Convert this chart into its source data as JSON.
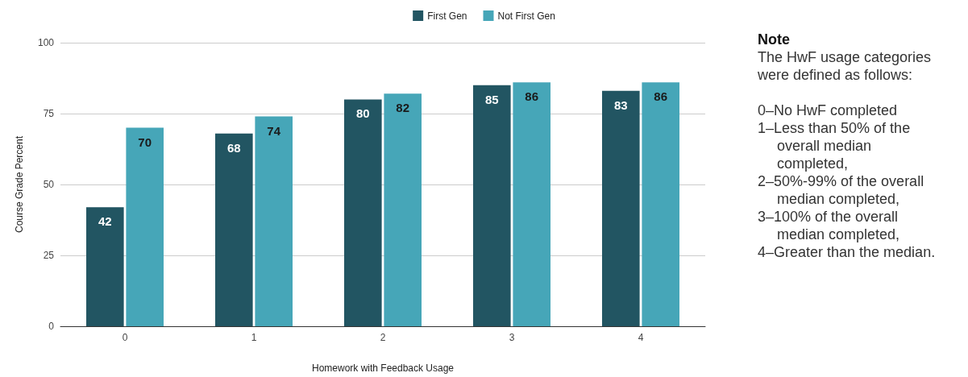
{
  "chart_data": {
    "type": "bar",
    "xlabel": "Homework with Feedback Usage",
    "ylabel": "Course Grade Percent",
    "categories": [
      "0",
      "1",
      "2",
      "3",
      "4"
    ],
    "series": [
      {
        "name": "First Gen",
        "color": "#225562",
        "values": [
          42,
          68,
          80,
          85,
          83
        ]
      },
      {
        "name": "Not First Gen",
        "color": "#46a6b8",
        "values": [
          70,
          74,
          82,
          86,
          86
        ]
      }
    ],
    "ylim": [
      0,
      100
    ],
    "yticks": [
      0,
      25,
      50,
      75,
      100
    ],
    "grid": "y",
    "legend": "top",
    "data_labels": true,
    "annotations": [
      "Note",
      "The HwF usage categories were defined as follows:",
      "0–No HwF completed",
      "1–Less than 50% of the overall median completed,",
      "2–50%-99% of the overall median completed,",
      "3–100% of the overall median completed,",
      "4–Greater than the median."
    ]
  }
}
